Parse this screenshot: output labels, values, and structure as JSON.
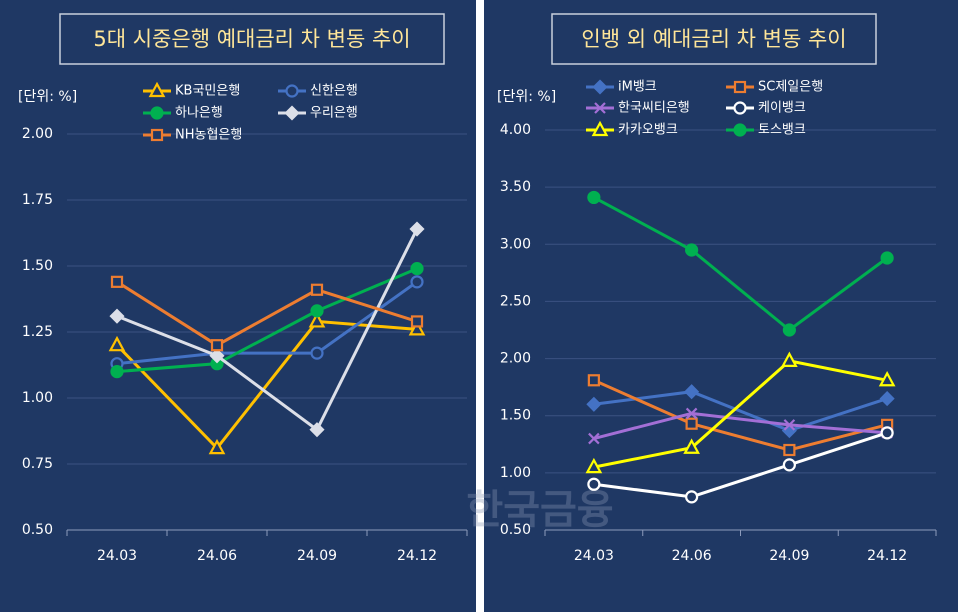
{
  "chart_data": [
    {
      "type": "line",
      "title": "5대 시중은행 예대금리 차 변동 추이",
      "unit": "[단위: %]",
      "categories": [
        "24.03",
        "24.06",
        "24.09",
        "24.12"
      ],
      "ylim": [
        0.5,
        2.0
      ],
      "yticks": [
        {
          "value": 0.5,
          "label": "0.50"
        },
        {
          "value": 0.75,
          "label": "0.75"
        },
        {
          "value": 1.0,
          "label": "1.00"
        },
        {
          "value": 1.25,
          "label": "1.25"
        },
        {
          "value": 1.5,
          "label": "1.50"
        },
        {
          "value": 1.75,
          "label": "1.75"
        },
        {
          "value": 2.0,
          "label": "2.00"
        }
      ],
      "grid": true,
      "series": [
        {
          "name": "KB국민은행",
          "color": "#ffc000",
          "marker": "triangle-open",
          "values": [
            1.2,
            0.81,
            1.29,
            1.26
          ]
        },
        {
          "name": "신한은행",
          "color": "#4472c4",
          "marker": "circle-open",
          "values": [
            1.13,
            1.17,
            1.17,
            1.44
          ]
        },
        {
          "name": "하나은행",
          "color": "#00b050",
          "marker": "circle",
          "values": [
            1.1,
            1.13,
            1.33,
            1.49
          ]
        },
        {
          "name": "우리은행",
          "color": "#dcdfe8",
          "marker": "diamond",
          "values": [
            1.31,
            1.16,
            0.88,
            1.64
          ]
        },
        {
          "name": "NH농협은행",
          "color": "#ed7d31",
          "marker": "square-open",
          "values": [
            1.44,
            1.2,
            1.41,
            1.29
          ]
        }
      ]
    },
    {
      "type": "line",
      "title": "인뱅 외 예대금리 차 변동 추이",
      "unit": "[단위: %]",
      "categories": [
        "24.03",
        "24.06",
        "24.09",
        "24.12"
      ],
      "ylim": [
        0.5,
        4.0
      ],
      "yticks": [
        {
          "value": 0.5,
          "label": "0.50"
        },
        {
          "value": 1.0,
          "label": "1.00"
        },
        {
          "value": 1.5,
          "label": "1.50"
        },
        {
          "value": 2.0,
          "label": "2.00"
        },
        {
          "value": 2.5,
          "label": "2.50"
        },
        {
          "value": 3.0,
          "label": "3.00"
        },
        {
          "value": 3.5,
          "label": "3.50"
        },
        {
          "value": 4.0,
          "label": "4.00"
        }
      ],
      "grid": true,
      "series": [
        {
          "name": "iM뱅크",
          "color": "#4472c4",
          "marker": "diamond",
          "values": [
            1.6,
            1.71,
            1.37,
            1.65
          ]
        },
        {
          "name": "SC제일은행",
          "color": "#ed7d31",
          "marker": "square-open",
          "values": [
            1.81,
            1.43,
            1.2,
            1.42
          ]
        },
        {
          "name": "한국씨티은행",
          "color": "#a36fd6",
          "marker": "x",
          "values": [
            1.3,
            1.52,
            1.42,
            1.35
          ]
        },
        {
          "name": "케이뱅크",
          "color": "#ffffff",
          "marker": "circle-open",
          "values": [
            0.9,
            0.79,
            1.07,
            1.35
          ]
        },
        {
          "name": "카카오뱅크",
          "color": "#ffff00",
          "marker": "triangle-open",
          "values": [
            1.05,
            1.22,
            1.98,
            1.81
          ]
        },
        {
          "name": "토스뱅크",
          "color": "#00b050",
          "marker": "circle",
          "values": [
            3.41,
            2.95,
            2.25,
            2.88
          ]
        }
      ]
    }
  ],
  "watermark": "한국금융"
}
